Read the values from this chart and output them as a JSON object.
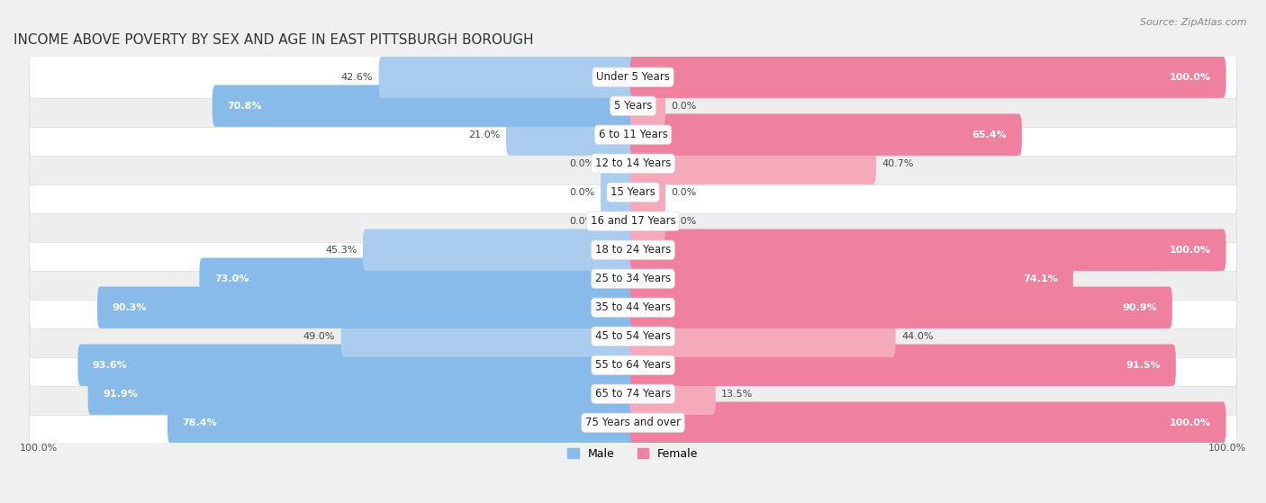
{
  "title": "INCOME ABOVE POVERTY BY SEX AND AGE IN EAST PITTSBURGH BOROUGH",
  "source": "Source: ZipAtlas.com",
  "categories": [
    "Under 5 Years",
    "5 Years",
    "6 to 11 Years",
    "12 to 14 Years",
    "15 Years",
    "16 and 17 Years",
    "18 to 24 Years",
    "25 to 34 Years",
    "35 to 44 Years",
    "45 to 54 Years",
    "55 to 64 Years",
    "65 to 74 Years",
    "75 Years and over"
  ],
  "male_values": [
    42.6,
    70.8,
    21.0,
    0.0,
    0.0,
    0.0,
    45.3,
    73.0,
    90.3,
    49.0,
    93.6,
    91.9,
    78.4
  ],
  "female_values": [
    100.0,
    0.0,
    65.4,
    40.7,
    0.0,
    0.0,
    100.0,
    74.1,
    90.9,
    44.0,
    91.5,
    13.5,
    100.0
  ],
  "male_color": "#88BBEA",
  "female_color": "#F080A0",
  "male_light_color": "#AACCEE",
  "female_light_color": "#F5AABB",
  "row_bg_light": "#FFFFFF",
  "row_bg_dark": "#EEEEEE",
  "bar_height": 0.45,
  "max_value": 100.0,
  "xlabel_label": "100.0%",
  "legend_male": "Male",
  "legend_female": "Female",
  "min_bar_val": 5.0
}
